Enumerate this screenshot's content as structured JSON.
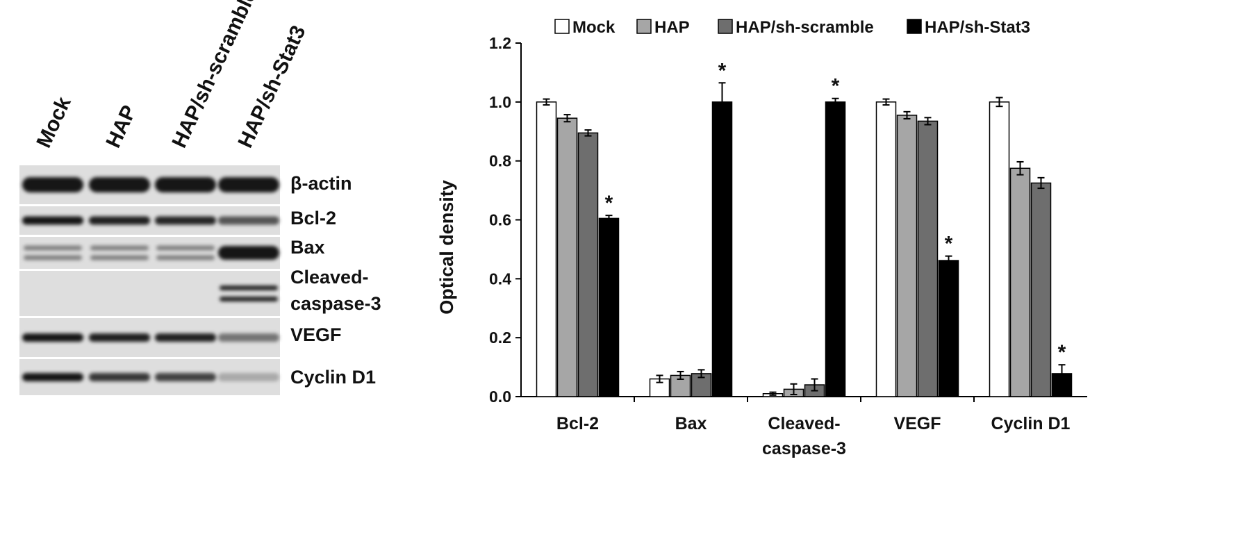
{
  "blot": {
    "lanes": [
      "Mock",
      "HAP",
      "HAP/sh-scramble",
      "HAP/sh-Stat3"
    ],
    "bands": [
      {
        "name": "β-actin",
        "intensity": [
          1.0,
          1.0,
          1.0,
          1.0
        ]
      },
      {
        "name": "Bcl-2",
        "intensity": [
          1.0,
          0.94,
          0.9,
          0.6
        ]
      },
      {
        "name": "Bax",
        "intensity": [
          0.3,
          0.3,
          0.3,
          1.0
        ]
      },
      {
        "name": "Cleaved-\ncaspase-3",
        "intensity": [
          0.0,
          0.0,
          0.0,
          1.0
        ]
      },
      {
        "name": "VEGF",
        "intensity": [
          1.0,
          0.95,
          0.93,
          0.4
        ]
      },
      {
        "name": "Cyclin D1",
        "intensity": [
          1.0,
          0.78,
          0.72,
          0.05
        ]
      }
    ]
  },
  "chart_data": {
    "type": "bar",
    "categories": [
      "Bcl-2",
      "Bax",
      "Cleaved-\ncaspase-3",
      "VEGF",
      "Cyclin D1"
    ],
    "series": [
      {
        "name": "Mock",
        "color": "#ffffff",
        "values": [
          1.0,
          0.06,
          0.01,
          1.0,
          1.0
        ],
        "errors": [
          0.01,
          0.012,
          0.005,
          0.01,
          0.015
        ]
      },
      {
        "name": "HAP",
        "color": "#a6a6a6",
        "values": [
          0.945,
          0.072,
          0.025,
          0.955,
          0.775
        ],
        "errors": [
          0.012,
          0.013,
          0.018,
          0.012,
          0.022
        ]
      },
      {
        "name": "HAP/sh-scramble",
        "color": "#6e6e6e",
        "values": [
          0.895,
          0.078,
          0.04,
          0.935,
          0.725
        ],
        "errors": [
          0.01,
          0.013,
          0.02,
          0.012,
          0.018
        ]
      },
      {
        "name": "HAP/sh-Stat3",
        "color": "#000000",
        "values": [
          0.605,
          1.0,
          1.0,
          0.462,
          0.078
        ],
        "errors": [
          0.01,
          0.065,
          0.012,
          0.015,
          0.03
        ]
      }
    ],
    "significance": [
      {
        "category": 0,
        "series": 3,
        "mark": "*"
      },
      {
        "category": 1,
        "series": 3,
        "mark": "*"
      },
      {
        "category": 2,
        "series": 3,
        "mark": "*"
      },
      {
        "category": 3,
        "series": 3,
        "mark": "*"
      },
      {
        "category": 4,
        "series": 3,
        "mark": "*"
      }
    ],
    "yticks": [
      "0.0",
      "0.2",
      "0.4",
      "0.6",
      "0.8",
      "1.0",
      "1.2"
    ],
    "ylim": [
      0,
      1.2
    ],
    "ylabel": "Optical density",
    "legend_position": "top"
  }
}
